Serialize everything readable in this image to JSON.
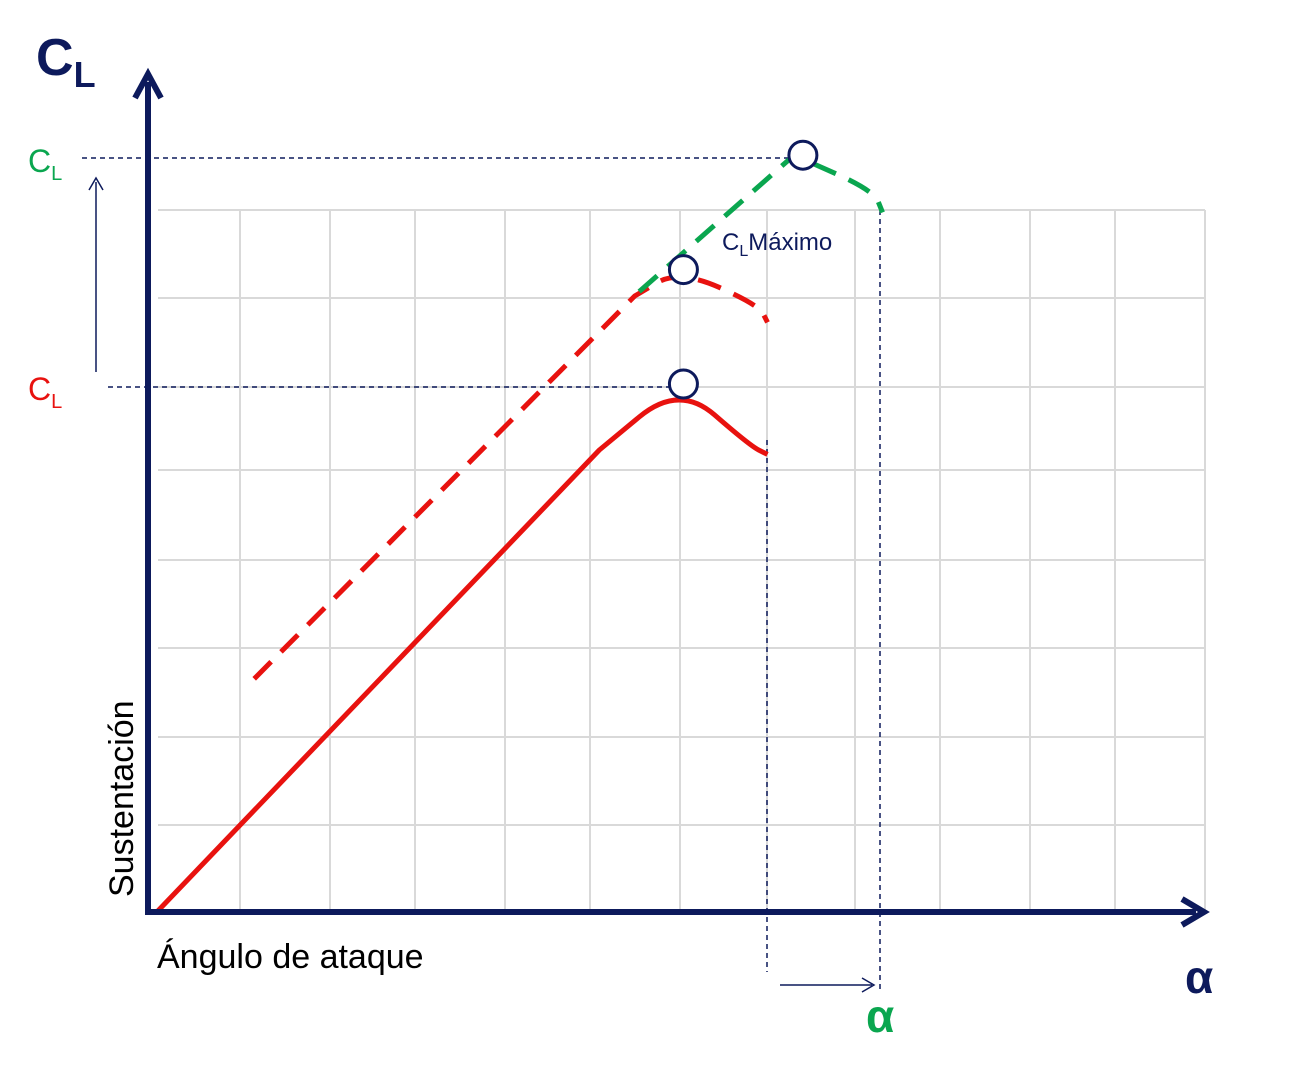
{
  "colors": {
    "axis": "#0d1a5c",
    "grid": "#d9d9d9",
    "base_curve": "#e8120f",
    "flap_curve": "#e8120f",
    "slat_curve": "#0aa64f",
    "guide": "#0d1a5c"
  },
  "chart_data": {
    "type": "line",
    "title": "",
    "ylabel_main": "C",
    "ylabel_main_sub": "L",
    "xlabel_main": "α",
    "ylabel_text": "Sustentación",
    "xlabel_text": "Ángulo de ataque",
    "grid": true,
    "xlim": [
      0,
      12
    ],
    "ylim": [
      0,
      8
    ],
    "y_markers": [
      {
        "label": "C",
        "sub": "L",
        "color": "#0aa64f",
        "value": 8.6
      },
      {
        "label": "C",
        "sub": "L",
        "color": "#e8120f",
        "value": 6.0
      }
    ],
    "alpha_marker": {
      "label": "α",
      "color": "#0aa64f"
    },
    "annotation": {
      "label": "C",
      "sub": "L",
      "rest": "Máximo"
    },
    "series": [
      {
        "style": "solid",
        "color": "#e8120f",
        "points": [
          [
            0.1,
            0.0
          ],
          [
            5.1,
            5.25
          ],
          [
            6.0,
            6.0
          ],
          [
            6.8,
            5.3
          ],
          [
            7.0,
            5.2
          ]
        ]
      },
      {
        "style": "dashed",
        "color": "#e8120f",
        "points": [
          [
            1.2,
            2.65
          ],
          [
            5.5,
            7.0
          ],
          [
            6.0,
            7.3
          ],
          [
            6.9,
            6.9
          ],
          [
            7.0,
            6.7
          ]
        ]
      },
      {
        "style": "dashed",
        "color": "#0aa64f",
        "points": [
          [
            5.55,
            7.05
          ],
          [
            7.3,
            8.6
          ],
          [
            8.2,
            8.2
          ],
          [
            8.3,
            7.95
          ]
        ]
      }
    ],
    "maxima": [
      {
        "x": 6.05,
        "y": 6.0
      },
      {
        "x": 6.05,
        "y": 7.3
      },
      {
        "x": 7.4,
        "y": 8.6
      }
    ]
  }
}
